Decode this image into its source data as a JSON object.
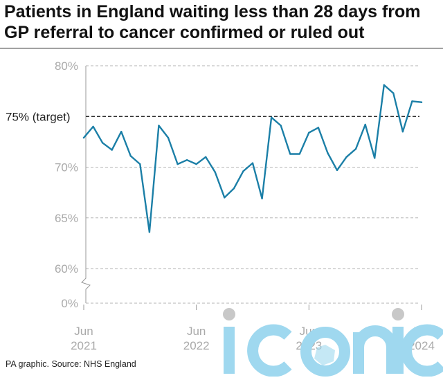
{
  "title": "Patients in England waiting less than 28 days from GP referral to cancer confirmed or ruled out",
  "source": "PA graphic. Source: NHS England",
  "watermark": {
    "text": "iconic",
    "color": "#9fd8ef"
  },
  "colors": {
    "line": "#1b7fa7",
    "grid": "#b3b3b3",
    "target": "#111111",
    "axis_text": "#aaaaaa"
  },
  "chart_data": {
    "type": "line",
    "title": "Patients in England waiting less than 28 days from GP referral to cancer confirmed or ruled out",
    "xlabel": "",
    "ylabel": "",
    "y_unit": "%",
    "ylim": [
      60,
      80
    ],
    "y_axis_break": true,
    "y_ticks": [
      "80%",
      "70%",
      "65%",
      "60%",
      "0%"
    ],
    "x_ticks": [
      {
        "label": "Jun",
        "sub": "2021",
        "index": 0
      },
      {
        "label": "Jun",
        "sub": "2022",
        "index": 12
      },
      {
        "label": "Jun",
        "sub": "2023",
        "index": 24
      },
      {
        "label": "Jun",
        "sub": "2024",
        "index": 36
      }
    ],
    "x_start": "Jun 2021",
    "x_end": "Jun 2024",
    "target": {
      "value": 75,
      "label": "75% (target)"
    },
    "grid": true,
    "series": [
      {
        "values": [
          72.9,
          74.0,
          72.4,
          71.7,
          73.5,
          71.1,
          70.3,
          63.6,
          74.1,
          72.9,
          70.3,
          70.7,
          70.3,
          71.0,
          69.5,
          67.0,
          67.9,
          69.6,
          70.4,
          66.9,
          74.9,
          74.1,
          71.3,
          71.3,
          73.4,
          73.9,
          71.4,
          69.7,
          71.0,
          71.8,
          74.2,
          70.9,
          78.1,
          77.3,
          73.5,
          76.5,
          76.4
        ]
      }
    ]
  }
}
